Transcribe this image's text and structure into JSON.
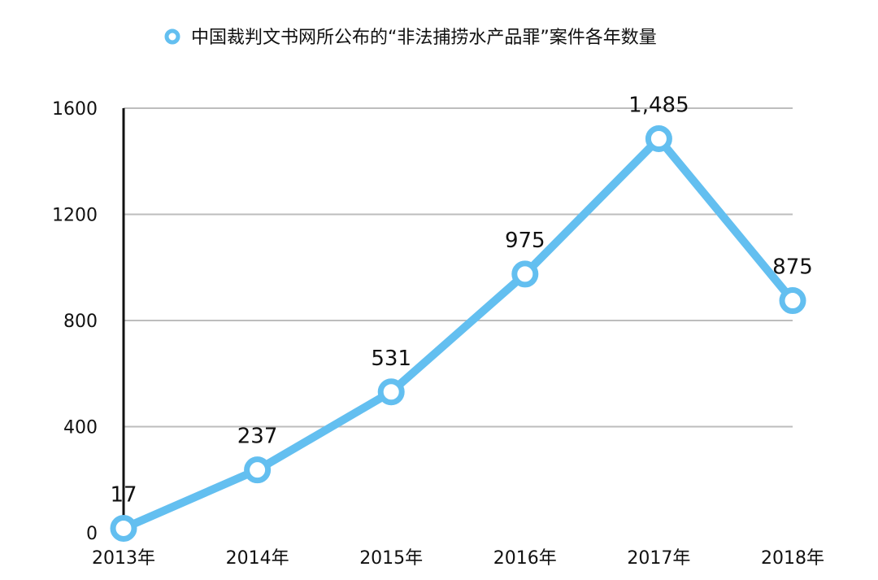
{
  "chart_data": {
    "type": "line",
    "title": "",
    "xlabel": "",
    "ylabel": "",
    "categories": [
      "2013年",
      "2014年",
      "2015年",
      "2016年",
      "2017年",
      "2018年"
    ],
    "series": [
      {
        "name": "中国裁判文书网所公布的“非法捕捞水产品罪”案件各年数量",
        "values": [
          17,
          237,
          531,
          975,
          1485,
          875
        ],
        "labels": [
          "17",
          "237",
          "531",
          "975",
          "1,485",
          "875"
        ],
        "color": "#63bff0"
      }
    ],
    "ylim": [
      0,
      1600
    ],
    "yticks": [
      "0",
      "400",
      "800",
      "1200",
      "1600"
    ],
    "ytick_values": [
      0,
      400,
      800,
      1200,
      1600
    ],
    "grid": true,
    "legend_position": "top"
  }
}
